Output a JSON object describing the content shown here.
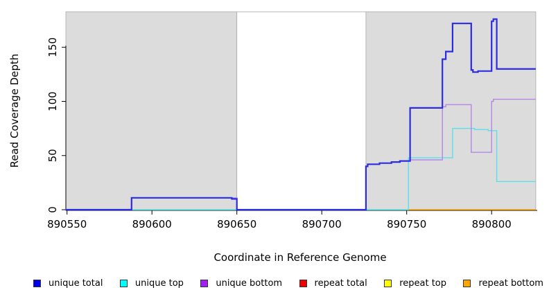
{
  "chart_data": {
    "type": "line",
    "subtype": "step",
    "title": "",
    "xlabel": "Coordinate in Reference Genome",
    "ylabel": "Read Coverage Depth",
    "xlim": [
      890549,
      890826
    ],
    "ylim": [
      0,
      183
    ],
    "x_ticks": [
      "890550",
      "890600",
      "890650",
      "890700",
      "890750",
      "890800"
    ],
    "y_ticks": [
      "0",
      "50",
      "100",
      "150"
    ],
    "grid": false,
    "legend_position": "bottom",
    "plot_bg": "#ffffff",
    "region_border": "#a9a9a9",
    "shaded_regions": [
      {
        "x0": 890549,
        "x1": 890650,
        "fill": "#dcdcdc"
      },
      {
        "x0": 890650,
        "x1": 890726,
        "fill": "#ffffff"
      },
      {
        "x0": 890726,
        "x1": 890826,
        "fill": "#dcdcdc"
      }
    ],
    "extra_lines": [
      {
        "name": "baseline-overlap-left",
        "color": "#8fd88f",
        "points": [
          [
            890588,
            0
          ],
          [
            890650,
            0
          ]
        ]
      },
      {
        "name": "baseline-overlap-right",
        "color": "#8fd88f",
        "points": [
          [
            890726,
            0
          ],
          [
            890751,
            0
          ]
        ]
      }
    ],
    "series": [
      {
        "name": "unique top",
        "color": "#5cdeec",
        "points": [
          [
            890549,
            0
          ],
          [
            890751,
            0
          ],
          [
            890751,
            48
          ],
          [
            890777,
            48
          ],
          [
            890777,
            75
          ],
          [
            890790,
            75
          ],
          [
            890790,
            74
          ],
          [
            890798,
            74
          ],
          [
            890798,
            73
          ],
          [
            890803,
            73
          ],
          [
            890803,
            26
          ],
          [
            890826,
            26
          ]
        ]
      },
      {
        "name": "unique bottom",
        "color": "#b385e8",
        "points": [
          [
            890549,
            0
          ],
          [
            890588,
            0
          ],
          [
            890588,
            11
          ],
          [
            890650,
            11
          ],
          [
            890650,
            0
          ],
          [
            890726,
            0
          ],
          [
            890726,
            40
          ],
          [
            890727,
            40
          ],
          [
            890727,
            42
          ],
          [
            890734,
            42
          ],
          [
            890734,
            43
          ],
          [
            890741,
            43
          ],
          [
            890741,
            44
          ],
          [
            890746,
            44
          ],
          [
            890746,
            45
          ],
          [
            890752,
            45
          ],
          [
            890752,
            46
          ],
          [
            890771,
            46
          ],
          [
            890771,
            95
          ],
          [
            890773,
            95
          ],
          [
            890773,
            97
          ],
          [
            890788,
            97
          ],
          [
            890788,
            53
          ],
          [
            890800,
            53
          ],
          [
            890800,
            100
          ],
          [
            890801,
            100
          ],
          [
            890801,
            102
          ],
          [
            890826,
            102
          ]
        ]
      },
      {
        "name": "repeat bottom",
        "color": "#ffa500",
        "points": [
          [
            890751,
            0
          ],
          [
            890826,
            0
          ]
        ]
      },
      {
        "name": "unique total",
        "color": "#2b2be2",
        "points": [
          [
            890549,
            0
          ],
          [
            890588,
            0
          ],
          [
            890588,
            11
          ],
          [
            890647,
            11
          ],
          [
            890647,
            10
          ],
          [
            890650,
            10
          ],
          [
            890650,
            0
          ],
          [
            890726,
            0
          ],
          [
            890726,
            40
          ],
          [
            890727,
            40
          ],
          [
            890727,
            42
          ],
          [
            890734,
            42
          ],
          [
            890734,
            43
          ],
          [
            890741,
            43
          ],
          [
            890741,
            44
          ],
          [
            890746,
            44
          ],
          [
            890746,
            45
          ],
          [
            890752,
            45
          ],
          [
            890752,
            94
          ],
          [
            890771,
            94
          ],
          [
            890771,
            139
          ],
          [
            890773,
            139
          ],
          [
            890773,
            146
          ],
          [
            890777,
            146
          ],
          [
            890777,
            172
          ],
          [
            890788,
            172
          ],
          [
            890788,
            129
          ],
          [
            890789,
            129
          ],
          [
            890789,
            127
          ],
          [
            890792,
            127
          ],
          [
            890792,
            128
          ],
          [
            890800,
            128
          ],
          [
            890800,
            174
          ],
          [
            890801,
            174
          ],
          [
            890801,
            176
          ],
          [
            890803,
            176
          ],
          [
            890803,
            130
          ],
          [
            890826,
            130
          ]
        ]
      }
    ],
    "legend": [
      {
        "label": "unique total",
        "color": "#0000ee"
      },
      {
        "label": "unique top",
        "color": "#00ffff"
      },
      {
        "label": "unique bottom",
        "color": "#a020f0"
      },
      {
        "label": "repeat total",
        "color": "#ee0000"
      },
      {
        "label": "repeat top",
        "color": "#ffff00"
      },
      {
        "label": "repeat bottom",
        "color": "#ffa500"
      }
    ]
  }
}
